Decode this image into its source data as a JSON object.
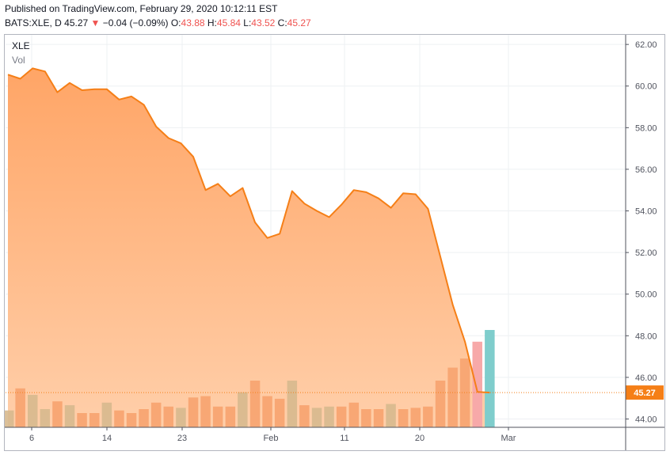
{
  "header": {
    "published": "Published on TradingView.com, February 29, 2020 10:12:11 EST",
    "symbol": "BATS:XLE, D",
    "last": "45.27",
    "arrow": "▼",
    "change": "−0.04 (−0.09%)",
    "open_label": "O:",
    "open": "43.88",
    "high_label": "H:",
    "high": "45.84",
    "low_label": "L:",
    "low": "43.52",
    "close_label": "C:",
    "close": "45.27"
  },
  "legend": {
    "series": "XLE",
    "volume": "Vol"
  },
  "colors": {
    "line": "#f57f17",
    "area_top": "#ffa566",
    "area_bottom": "#ffcfaa",
    "vol_up": "#f7a36f",
    "vol_down": "#f7a36f",
    "vol_muted": "#d7b98e",
    "vol_last_pink": "#f7a9a9",
    "vol_last_teal": "#7fcdcc",
    "last_price": "#f57f17",
    "grid": "#eef0f3",
    "axis_text": "#50535e"
  },
  "chart_data": {
    "type": "area",
    "title": "XLE",
    "x_ticks": [
      "6",
      "14",
      "23",
      "Feb",
      "11",
      "20",
      "Mar"
    ],
    "y_ticks": [
      "62.00",
      "60.00",
      "58.00",
      "56.00",
      "54.00",
      "52.00",
      "50.00",
      "48.00",
      "46.00",
      "44.00"
    ],
    "ylim": [
      43.6,
      62.5
    ],
    "last_price_label": "45.27",
    "series": [
      {
        "name": "XLE",
        "values": [
          60.55,
          60.35,
          60.85,
          60.7,
          59.7,
          60.15,
          59.8,
          59.85,
          59.85,
          59.35,
          59.5,
          59.1,
          58.05,
          57.5,
          57.25,
          56.6,
          55.0,
          55.3,
          54.7,
          55.1,
          53.45,
          52.7,
          52.9,
          54.95,
          54.35,
          54.0,
          53.7,
          54.3,
          55.0,
          54.9,
          54.6,
          54.15,
          54.85,
          54.8,
          54.1,
          51.8,
          49.5,
          47.7,
          45.3,
          45.27
        ]
      },
      {
        "name": "Vol",
        "values": [
          1.3,
          3.0,
          2.5,
          1.4,
          2.0,
          1.7,
          1.1,
          1.1,
          1.9,
          1.3,
          1.1,
          1.4,
          1.9,
          1.6,
          1.5,
          2.3,
          2.4,
          1.6,
          1.6,
          2.7,
          3.6,
          2.4,
          2.2,
          3.6,
          1.7,
          1.5,
          1.6,
          1.6,
          1.9,
          1.4,
          1.4,
          1.8,
          1.4,
          1.5,
          1.6,
          3.6,
          4.6,
          5.3,
          6.6,
          7.5
        ]
      }
    ],
    "volume_colors": [
      "muted",
      "up",
      "muted",
      "muted",
      "up",
      "muted",
      "up",
      "up",
      "muted",
      "up",
      "up",
      "up",
      "up",
      "up",
      "muted",
      "up",
      "up",
      "up",
      "up",
      "muted",
      "up",
      "up",
      "up",
      "muted",
      "up",
      "muted",
      "muted",
      "up",
      "up",
      "up",
      "up",
      "muted",
      "up",
      "up",
      "up",
      "up",
      "up",
      "up",
      "pink",
      "teal"
    ]
  }
}
